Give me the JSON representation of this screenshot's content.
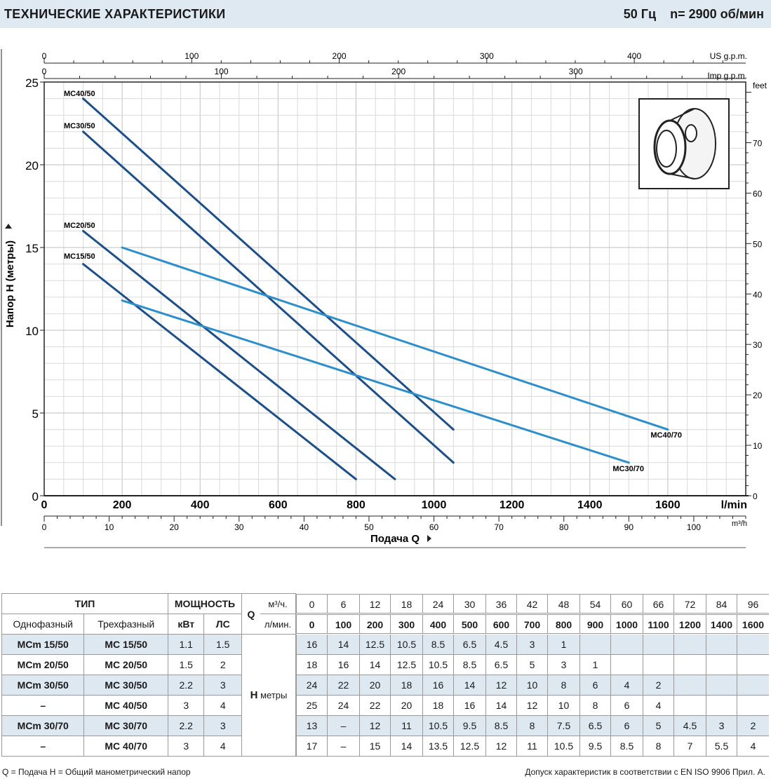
{
  "header": {
    "title": "ТЕХНИЧЕСКИЕ ХАРАКТЕРИСТИКИ",
    "freq": "50 Гц",
    "speed": "n= 2900  об/мин"
  },
  "chart_data": {
    "type": "line",
    "ylabel": "Напор H  (метры)",
    "xlabel": "Подача  Q",
    "xlim": [
      0,
      1800
    ],
    "ylim": [
      0,
      25
    ],
    "x_unit": "l/min",
    "y_ticks": [
      "0",
      "5",
      "10",
      "15",
      "20",
      "25"
    ],
    "x_ticks": [
      "0",
      "200",
      "400",
      "600",
      "800",
      "1000",
      "1200",
      "1400",
      "1600"
    ],
    "top_axis_us": {
      "unit": "US g.p.m.",
      "ticks": [
        "0",
        "100",
        "200",
        "300",
        "400"
      ]
    },
    "top_axis_imp": {
      "unit": "Imp g.p.m.",
      "ticks": [
        "0",
        "100",
        "200",
        "300"
      ]
    },
    "right_axis": {
      "unit": "feet",
      "ticks": [
        "0",
        "10",
        "20",
        "30",
        "40",
        "50",
        "60",
        "70"
      ]
    },
    "bottom_axis": {
      "unit": "m³/h",
      "ticks": [
        "0",
        "10",
        "20",
        "30",
        "40",
        "50",
        "60",
        "70",
        "80",
        "90",
        "100"
      ]
    },
    "grid": true,
    "series": [
      {
        "name": "MC40/50",
        "color": "#1b4f8c",
        "x": [
          100,
          1050
        ],
        "y": [
          24,
          4
        ]
      },
      {
        "name": "MC30/50",
        "color": "#1b4f8c",
        "x": [
          100,
          1050
        ],
        "y": [
          22,
          2
        ]
      },
      {
        "name": "MC20/50",
        "color": "#1b4f8c",
        "x": [
          100,
          900
        ],
        "y": [
          16,
          1
        ]
      },
      {
        "name": "MC15/50",
        "color": "#1b4f8c",
        "x": [
          100,
          800
        ],
        "y": [
          14,
          1
        ]
      },
      {
        "name": "MC40/70",
        "color": "#2b8fcc",
        "x": [
          200,
          1600
        ],
        "y": [
          15,
          4
        ]
      },
      {
        "name": "MC30/70",
        "color": "#2b8fcc",
        "x": [
          200,
          1500
        ],
        "y": [
          11.8,
          2
        ]
      }
    ]
  },
  "table": {
    "hdr": {
      "type": "ТИП",
      "power": "МОЩНОСТЬ",
      "q": "Q",
      "m3": "м³/ч.",
      "lmin": "л/мин.",
      "single": "Однофазный",
      "three": "Трехфазный",
      "kw": "кВт",
      "hp": "ЛС",
      "h": "H",
      "h_unit": "метры"
    },
    "m3_values": [
      "0",
      "6",
      "12",
      "18",
      "24",
      "30",
      "36",
      "42",
      "48",
      "54",
      "60",
      "66",
      "72",
      "84",
      "96"
    ],
    "l_values": [
      "0",
      "100",
      "200",
      "300",
      "400",
      "500",
      "600",
      "700",
      "800",
      "900",
      "1000",
      "1100",
      "1200",
      "1400",
      "1600"
    ],
    "rows": [
      {
        "single": "MCm 15/50",
        "three": "MC 15/50",
        "kw": "1.1",
        "hp": "1.5",
        "h": [
          "16",
          "14",
          "12.5",
          "10.5",
          "8.5",
          "6.5",
          "4.5",
          "3",
          "1",
          "",
          "",
          "",
          "",
          "",
          ""
        ]
      },
      {
        "single": "MCm 20/50",
        "three": "MC 20/50",
        "kw": "1.5",
        "hp": "2",
        "h": [
          "18",
          "16",
          "14",
          "12.5",
          "10.5",
          "8.5",
          "6.5",
          "5",
          "3",
          "1",
          "",
          "",
          "",
          "",
          ""
        ]
      },
      {
        "single": "MCm 30/50",
        "three": "MC 30/50",
        "kw": "2.2",
        "hp": "3",
        "h": [
          "24",
          "22",
          "20",
          "18",
          "16",
          "14",
          "12",
          "10",
          "8",
          "6",
          "4",
          "2",
          "",
          "",
          ""
        ]
      },
      {
        "single": "–",
        "three": "MC 40/50",
        "kw": "3",
        "hp": "4",
        "h": [
          "25",
          "24",
          "22",
          "20",
          "18",
          "16",
          "14",
          "12",
          "10",
          "8",
          "6",
          "4",
          "",
          "",
          ""
        ]
      },
      {
        "single": "MCm 30/70",
        "three": "MC 30/70",
        "kw": "2.2",
        "hp": "3",
        "h": [
          "13",
          "–",
          "12",
          "11",
          "10.5",
          "9.5",
          "8.5",
          "8",
          "7.5",
          "6.5",
          "6",
          "5",
          "4.5",
          "3",
          "2"
        ]
      },
      {
        "single": "–",
        "three": "MC 40/70",
        "kw": "3",
        "hp": "4",
        "h": [
          "17",
          "–",
          "15",
          "14",
          "13.5",
          "12.5",
          "12",
          "11",
          "10.5",
          "9.5",
          "8.5",
          "8",
          "7",
          "5.5",
          "4"
        ]
      }
    ]
  },
  "footer": {
    "left": "Q = Подача   H = Общий манометрический напор",
    "right": "Допуск характеристик в соответствии с EN ISO 9906 Прил. А."
  }
}
